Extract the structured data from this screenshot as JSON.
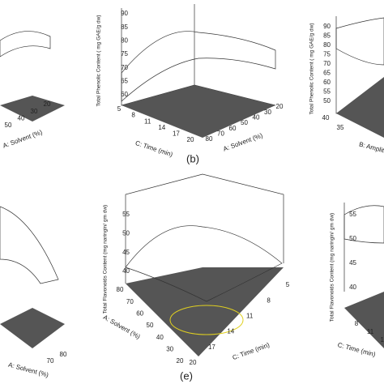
{
  "panels": [
    {
      "axis_2_label": "A: Solvent (%)",
      "axis_2_ticks": [
        "50",
        "40",
        "30",
        "20"
      ]
    },
    {
      "y_axis_label": "Total Phenolic Content ( mg GAE/g dw)",
      "y_ticks": [
        "90",
        "85",
        "80",
        "75",
        "70",
        "65",
        "60"
      ],
      "axis_1_label": "C: Time  (min)",
      "axis_1_ticks": [
        "5",
        "8",
        "11",
        "14",
        "17",
        "20"
      ],
      "axis_2_label": "A: Solvent (%)",
      "axis_2_ticks": [
        "80",
        "70",
        "60",
        "50",
        "40",
        "30",
        "20"
      ],
      "caption": "(b)"
    },
    {
      "y_axis_label": "Total Phenolic Content ( mg GAE/g dw)",
      "y_ticks": [
        "90",
        "85",
        "80",
        "75",
        "70",
        "65",
        "60",
        "55",
        "50"
      ],
      "axis_1_ticks": [
        "40",
        "35"
      ],
      "axis_1_label": "B: Amplitude"
    },
    {
      "axis_2_label": "A: Solvent (%)",
      "axis_2_ticks": [
        "70",
        "80"
      ]
    },
    {
      "y_axis_label": "Total Flavonoids Content (mg naringin/ gm dw)",
      "y_ticks": [
        "55",
        "50",
        "45",
        "40"
      ],
      "axis_1_label": "A: Solvent (%)",
      "axis_1_ticks": [
        "80",
        "70",
        "60",
        "50",
        "40",
        "30",
        "20"
      ],
      "axis_2_label": "C: Time  (min)",
      "axis_2_ticks": [
        "5",
        "8",
        "11",
        "14",
        "17",
        "20"
      ],
      "caption": "(e)"
    },
    {
      "y_axis_label": "Total Flavonoids Content (mg naringin/ gm dw)",
      "y_ticks": [
        "55",
        "50",
        "45",
        "40"
      ],
      "axis_1_label": "C: Time  (min)",
      "axis_1_ticks": [
        "8",
        "11",
        "14"
      ]
    }
  ]
}
